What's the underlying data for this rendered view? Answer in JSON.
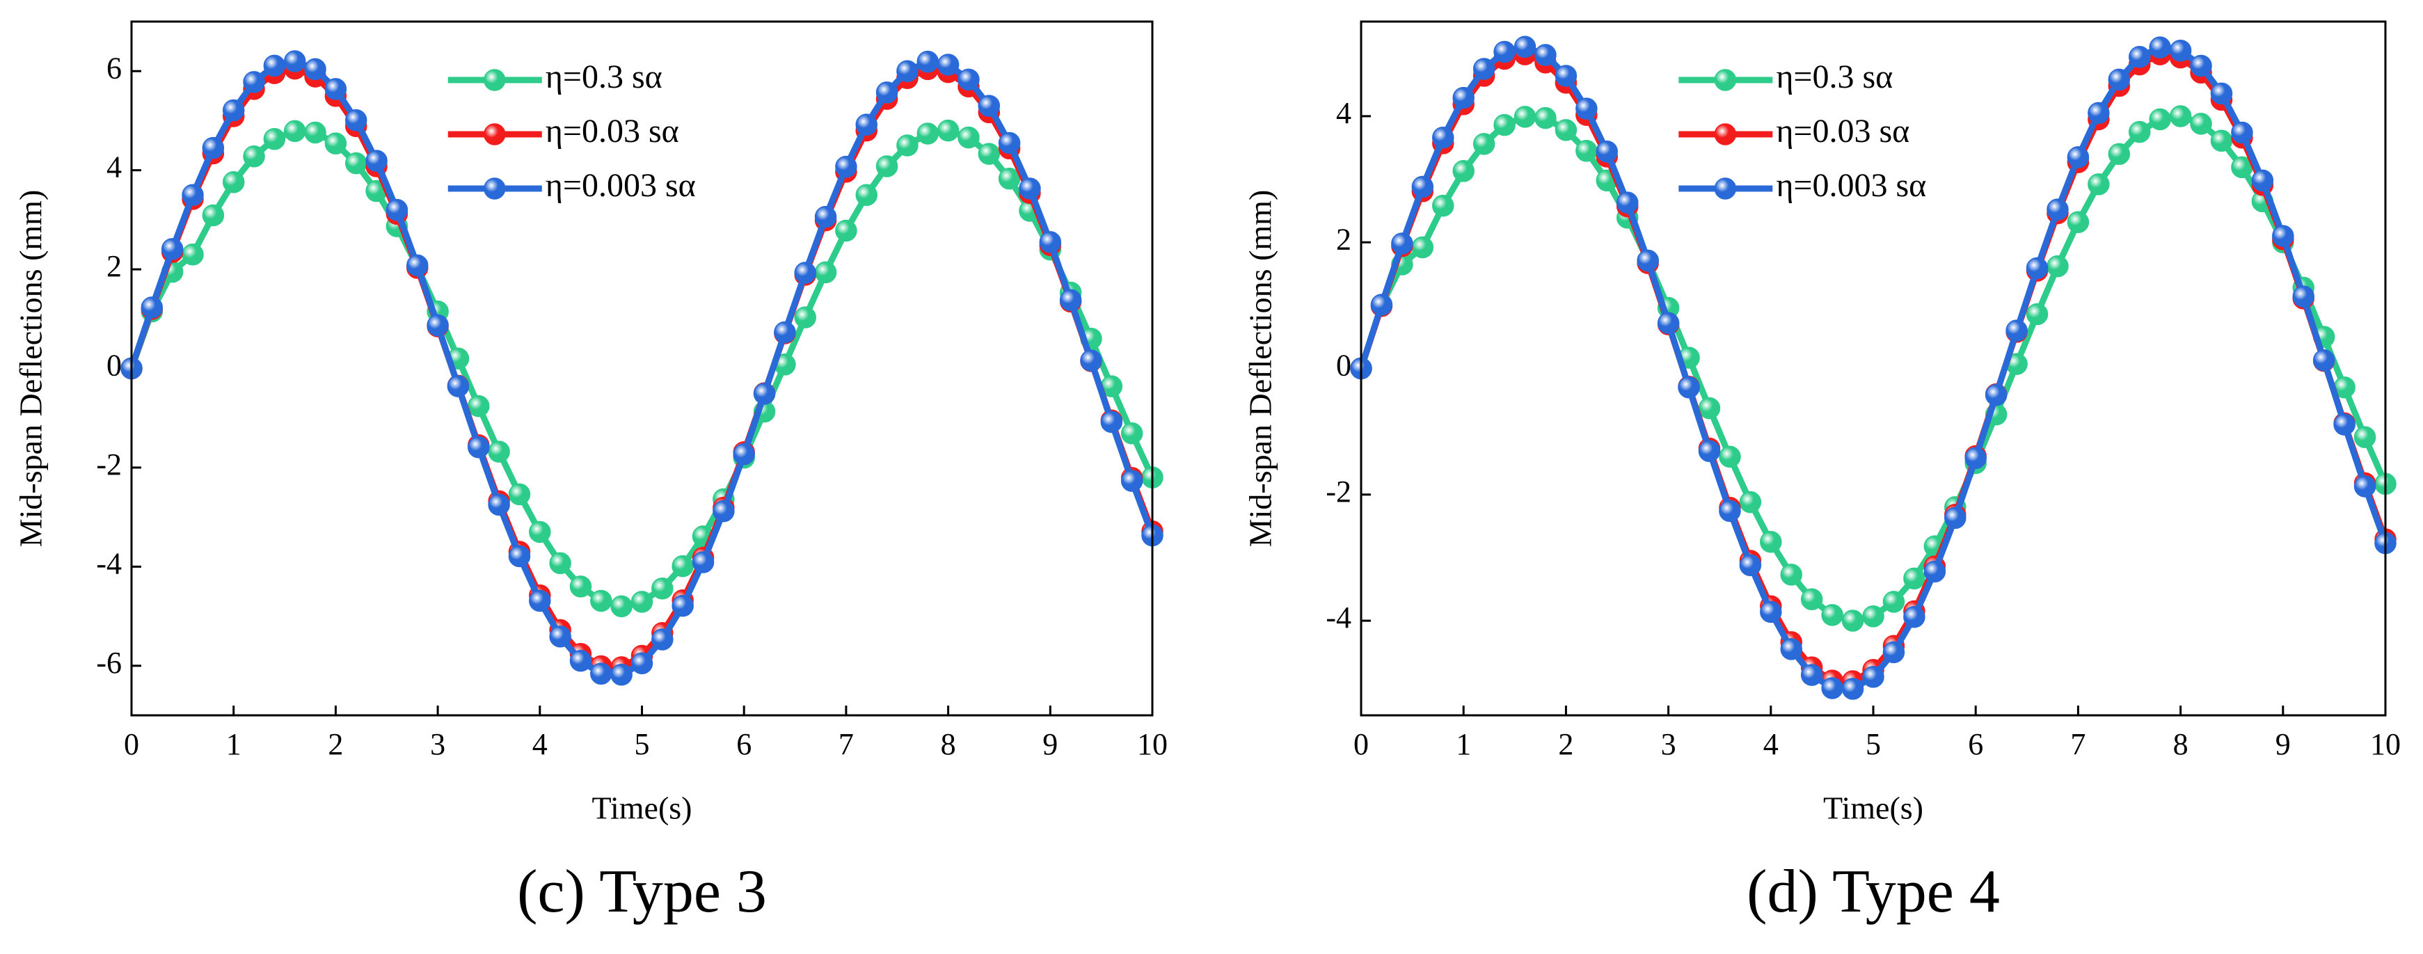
{
  "chart_data": [
    {
      "type": "line",
      "caption": "(c) Type 3",
      "xlabel": "Time(s)",
      "ylabel": "Mid-span Deflections (mm)",
      "xlim": [
        0,
        10
      ],
      "xticks": [
        0,
        1,
        2,
        3,
        4,
        5,
        6,
        7,
        8,
        9,
        10
      ],
      "ylim": [
        -7,
        7
      ],
      "yticks": [
        -6,
        -4,
        -2,
        0,
        2,
        4,
        6
      ],
      "legend": "upper center",
      "x": [
        0,
        0.2,
        0.4,
        0.6,
        0.8,
        1,
        1.2,
        1.4,
        1.6,
        1.8,
        2,
        2.2,
        2.4,
        2.6,
        2.8,
        3,
        3.2,
        3.4,
        3.6,
        3.8,
        4,
        4.2,
        4.4,
        4.6,
        4.8,
        5,
        5.2,
        5.4,
        5.6,
        5.8,
        6,
        6.2,
        6.4,
        6.6,
        6.8,
        7,
        7.2,
        7.4,
        7.6,
        7.8,
        8,
        8.2,
        8.4,
        8.6,
        8.8,
        9,
        9.2,
        9.4,
        9.6,
        9.8,
        10
      ],
      "series": [
        {
          "name": "η=0.3 sα",
          "color": "#2dcc8a",
          "values": [
            0,
            1.15,
            1.95,
            2.3,
            3.09,
            3.76,
            4.28,
            4.63,
            4.79,
            4.76,
            4.54,
            4.14,
            3.58,
            2.87,
            2.05,
            1.15,
            0.2,
            -0.76,
            -1.68,
            -2.54,
            -3.3,
            -3.93,
            -4.4,
            -4.69,
            -4.8,
            -4.71,
            -4.44,
            -3.99,
            -3.39,
            -2.64,
            -1.8,
            -0.87,
            0.08,
            1.03,
            1.94,
            2.78,
            3.5,
            4.08,
            4.5,
            4.74,
            4.8,
            4.66,
            4.33,
            3.83,
            3.18,
            2.4,
            1.53,
            0.6,
            -0.36,
            -1.31,
            -2.2
          ]
        },
        {
          "name": "η=0.03 sα",
          "color": "#f21c1c",
          "values": [
            0,
            1.2,
            2.35,
            3.42,
            4.34,
            5.09,
            5.64,
            5.96,
            6.05,
            5.89,
            5.5,
            4.89,
            4.08,
            3.12,
            2.03,
            0.85,
            -0.35,
            -1.55,
            -2.68,
            -3.7,
            -4.58,
            -5.28,
            -5.76,
            -6.01,
            -6.03,
            -5.8,
            -5.34,
            -4.68,
            -3.82,
            -2.81,
            -1.69,
            -0.5,
            0.71,
            1.89,
            2.99,
            3.97,
            4.8,
            5.44,
            5.86,
            6.04,
            5.98,
            5.69,
            5.17,
            4.44,
            3.54,
            2.49,
            1.35,
            0.15,
            -1.05,
            -2.21,
            -3.29
          ]
        },
        {
          "name": "η=0.003 sα",
          "color": "#2a6ad8",
          "values": [
            0,
            1.23,
            2.41,
            3.5,
            4.45,
            5.21,
            5.78,
            6.11,
            6.2,
            6.04,
            5.64,
            5.01,
            4.19,
            3.2,
            2.08,
            0.87,
            -0.36,
            -1.59,
            -2.75,
            -3.79,
            -4.69,
            -5.41,
            -5.9,
            -6.16,
            -6.18,
            -5.95,
            -5.47,
            -4.79,
            -3.91,
            -2.88,
            -1.73,
            -0.51,
            0.73,
            1.93,
            3.06,
            4.07,
            4.92,
            5.57,
            6.0,
            6.19,
            6.13,
            5.83,
            5.3,
            4.55,
            3.63,
            2.55,
            1.38,
            0.16,
            -1.08,
            -2.27,
            -3.37
          ]
        }
      ]
    },
    {
      "type": "line",
      "caption": "(d) Type 4",
      "xlabel": "Time(s)",
      "ylabel": "Mid-span Deflections (mm)",
      "xlim": [
        0,
        10
      ],
      "xticks": [
        0,
        1,
        2,
        3,
        4,
        5,
        6,
        7,
        8,
        9,
        10
      ],
      "ylim": [
        -5.5,
        5.5
      ],
      "yticks": [
        -4,
        -2,
        0,
        2,
        4
      ],
      "legend": "upper center",
      "x": [
        0,
        0.2,
        0.4,
        0.6,
        0.8,
        1,
        1.2,
        1.4,
        1.6,
        1.8,
        2,
        2.2,
        2.4,
        2.6,
        2.8,
        3,
        3.2,
        3.4,
        3.6,
        3.8,
        4,
        4.2,
        4.4,
        4.6,
        4.8,
        5,
        5.2,
        5.4,
        5.6,
        5.8,
        6,
        6.2,
        6.4,
        6.6,
        6.8,
        7,
        7.2,
        7.4,
        7.6,
        7.8,
        8,
        8.2,
        8.4,
        8.6,
        8.8,
        9,
        9.2,
        9.4,
        9.6,
        9.8,
        10
      ],
      "series": [
        {
          "name": "η=0.3 sα",
          "color": "#2dcc8a",
          "values": [
            0,
            1.0,
            1.65,
            1.92,
            2.58,
            3.13,
            3.56,
            3.86,
            3.99,
            3.97,
            3.78,
            3.45,
            2.98,
            2.39,
            1.71,
            0.96,
            0.17,
            -0.63,
            -1.4,
            -2.12,
            -2.75,
            -3.27,
            -3.66,
            -3.91,
            -4.0,
            -3.93,
            -3.7,
            -3.33,
            -2.82,
            -2.2,
            -1.5,
            -0.73,
            0.07,
            0.86,
            1.62,
            2.32,
            2.92,
            3.4,
            3.75,
            3.95,
            4.0,
            3.88,
            3.61,
            3.19,
            2.65,
            2.0,
            1.28,
            0.5,
            -0.3,
            -1.09,
            -1.83
          ]
        },
        {
          "name": "η=0.03 sα",
          "color": "#f21c1c",
          "values": [
            0,
            0.99,
            1.94,
            2.81,
            3.57,
            4.19,
            4.64,
            4.91,
            4.98,
            4.85,
            4.53,
            4.02,
            3.36,
            2.57,
            1.67,
            0.7,
            -0.29,
            -1.27,
            -2.21,
            -3.05,
            -3.77,
            -4.34,
            -4.74,
            -4.95,
            -4.96,
            -4.78,
            -4.4,
            -3.85,
            -3.14,
            -2.32,
            -1.39,
            -0.41,
            0.58,
            1.55,
            2.46,
            3.27,
            3.95,
            4.48,
            4.82,
            4.98,
            4.93,
            4.69,
            4.26,
            3.66,
            2.91,
            2.05,
            1.11,
            0.12,
            -0.87,
            -1.82,
            -2.71
          ]
        },
        {
          "name": "η=0.003 sα",
          "color": "#2a6ad8",
          "values": [
            0,
            1.01,
            1.98,
            2.88,
            3.66,
            4.29,
            4.75,
            5.02,
            5.1,
            4.97,
            4.64,
            4.12,
            3.44,
            2.63,
            1.71,
            0.72,
            -0.3,
            -1.31,
            -2.26,
            -3.12,
            -3.86,
            -4.45,
            -4.86,
            -5.07,
            -5.08,
            -4.89,
            -4.5,
            -3.94,
            -3.22,
            -2.37,
            -1.42,
            -0.42,
            0.6,
            1.59,
            2.52,
            3.35,
            4.05,
            4.58,
            4.94,
            5.09,
            5.04,
            4.8,
            4.36,
            3.74,
            2.98,
            2.1,
            1.14,
            0.13,
            -0.89,
            -1.87,
            -2.77
          ]
        }
      ]
    }
  ]
}
